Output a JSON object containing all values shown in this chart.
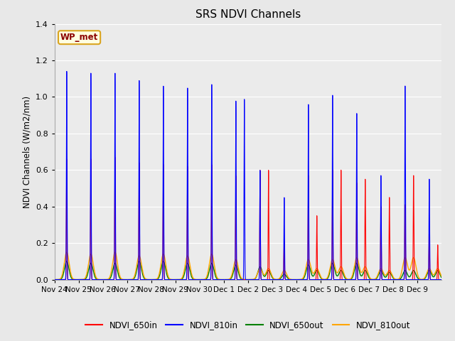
{
  "title": "SRS NDVI Channels",
  "ylabel": "NDVI Channels (W/m2/nm)",
  "annotation": "WP_met",
  "ylim": [
    0,
    1.4
  ],
  "fig_facecolor": "#e8e8e8",
  "plot_facecolor": "#ebebeb",
  "grid_color": "white",
  "legend_labels": [
    "NDVI_650in",
    "NDVI_810in",
    "NDVI_650out",
    "NDVI_810out"
  ],
  "legend_colors": [
    "red",
    "blue",
    "green",
    "orange"
  ],
  "tick_labels": [
    "Nov 24",
    "Nov 25",
    "Nov 26",
    "Nov 27",
    "Nov 28",
    "Nov 29",
    "Nov 30",
    "Dec 1",
    "Dec 2",
    "Dec 3",
    "Dec 4",
    "Dec 5",
    "Dec 6",
    "Dec 7",
    "Dec 8",
    "Dec 9"
  ],
  "days": 16,
  "peak_650in": [
    0.66,
    0.66,
    0.67,
    0.64,
    0.63,
    0.62,
    0.63,
    0.57,
    0.6,
    0.21,
    0.57,
    0.6,
    0.53,
    0.4,
    0.41,
    0.25
  ],
  "peak_810in": [
    1.14,
    1.13,
    1.13,
    1.09,
    1.06,
    1.05,
    1.07,
    0.98,
    0.6,
    0.45,
    0.96,
    1.01,
    0.91,
    0.57,
    1.06,
    0.55
  ],
  "peak_650out": [
    0.1,
    0.09,
    0.09,
    0.1,
    0.1,
    0.09,
    0.09,
    0.08,
    0.07,
    0.03,
    0.08,
    0.09,
    0.09,
    0.05,
    0.05,
    0.05
  ],
  "peak_810out": [
    0.15,
    0.14,
    0.15,
    0.13,
    0.14,
    0.13,
    0.14,
    0.11,
    0.06,
    0.05,
    0.11,
    0.11,
    0.12,
    0.06,
    0.12,
    0.06
  ],
  "secondary_650in": [
    0,
    0,
    0,
    0,
    0,
    0,
    0,
    0,
    0.6,
    0,
    0.35,
    0.6,
    0.55,
    0.45,
    0.57,
    0.19
  ],
  "secondary_810in": [
    0,
    0,
    0,
    0,
    0,
    0,
    0,
    0.99,
    0.0,
    0,
    0,
    0.0,
    0.0,
    0,
    0,
    0
  ],
  "secondary_650out": [
    0,
    0,
    0,
    0,
    0,
    0,
    0,
    0,
    0.05,
    0,
    0.05,
    0.05,
    0.05,
    0.04,
    0.05,
    0.05
  ],
  "secondary_810out": [
    0,
    0,
    0,
    0,
    0,
    0,
    0,
    0,
    0.06,
    0,
    0.06,
    0.07,
    0.07,
    0.05,
    0.12,
    0.06
  ]
}
